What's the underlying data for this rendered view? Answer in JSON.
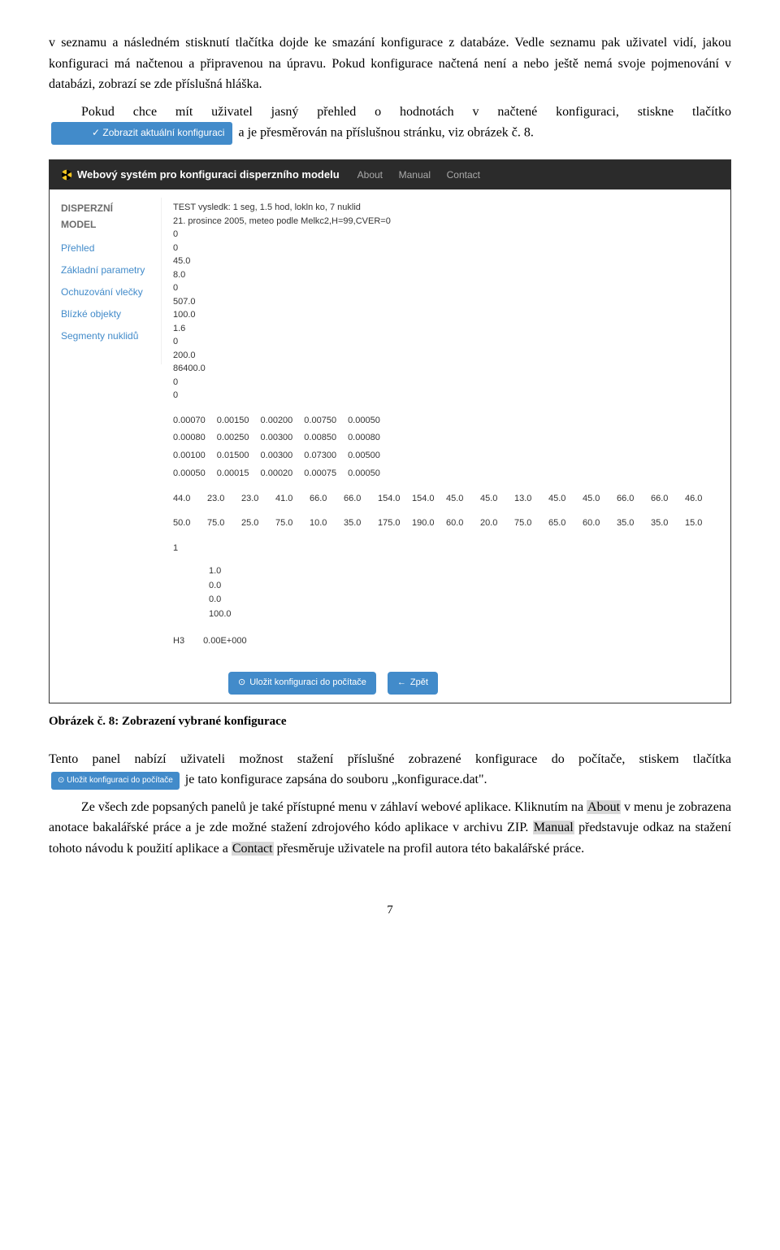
{
  "paragraphs": {
    "p1": "v seznamu a následném stisknutí tlačítka dojde ke smazání konfigurace z databáze. Vedle seznamu pak uživatel vidí, jakou konfiguraci má načtenou a připravenou na úpravu. Pokud konfigurace načtená není a nebo ještě nemá svoje pojmenování v databázi, zobrazí se zde příslušná hláška.",
    "p2a": "Pokud chce mít uživatel jasný přehled o hodnotách v načtené konfiguraci, stiskne tlačítko ",
    "p2b": " a je přesměrován na příslušnou stránku, viz obrázek č. 8.",
    "btn_refresh": "✓ Zobrazit aktuální konfiguraci"
  },
  "screenshot": {
    "brand": "Webový systém pro konfiguraci disperzního modelu",
    "nav": [
      "About",
      "Manual",
      "Contact"
    ],
    "sidebar": {
      "title": "DISPERZNÍ MODEL",
      "items": [
        "Přehled",
        "Základní parametry",
        "Ochuzování vlečky",
        "Blízké objekty",
        "Segmenty nuklidů"
      ]
    },
    "main": {
      "title_lines": [
        "TEST vysledk: 1 seg, 1.5 hod, lokln ko, 7 nuklid",
        "21. prosince 2005, meteo podle Melkc2,H=99,CVER=0"
      ],
      "list1": [
        "0",
        "0",
        "45.0",
        "8.0",
        "0",
        "507.0",
        "100.0",
        "1.6",
        "0",
        "200.0",
        "86400.0",
        "0",
        "0"
      ],
      "table1": [
        [
          "0.00070",
          "0.00150",
          "0.00200",
          "0.00750",
          "0.00050"
        ],
        [
          "0.00080",
          "0.00250",
          "0.00300",
          "0.00850",
          "0.00080"
        ],
        [
          "0.00100",
          "0.01500",
          "0.00300",
          "0.07300",
          "0.00500"
        ],
        [
          "0.00050",
          "0.00015",
          "0.00020",
          "0.00075",
          "0.00050"
        ]
      ],
      "wide_rows": [
        [
          "44.0",
          "23.0",
          "23.0",
          "41.0",
          "66.0",
          "66.0",
          "154.0",
          "154.0",
          "45.0",
          "45.0",
          "13.0",
          "45.0",
          "45.0",
          "66.0",
          "66.0",
          "46.0"
        ],
        [
          "50.0",
          "75.0",
          "25.0",
          "75.0",
          "10.0",
          "35.0",
          "175.0",
          "190.0",
          "60.0",
          "20.0",
          "75.0",
          "65.0",
          "60.0",
          "35.0",
          "35.0",
          "15.0"
        ]
      ],
      "single": "1",
      "col_small": [
        [
          "",
          "1.0"
        ],
        [
          "",
          "0.0"
        ],
        [
          "",
          "0.0"
        ],
        [
          "",
          "100.0"
        ]
      ],
      "h3row": [
        "H3",
        "0.00E+000"
      ]
    },
    "footer": {
      "save": "Uložit konfiguraci do počítače",
      "back": "Zpět"
    }
  },
  "caption": "Obrázek č. 8: Zobrazení vybrané konfigurace",
  "paragraphs2": {
    "p3a": "Tento panel nabízí uživateli možnost stažení příslušné zobrazené konfigurace do počítače, stiskem tlačítka ",
    "p3b": " je tato konfigurace zapsána do souboru „konfigurace.dat\".",
    "btn_save": "⊙ Uložit konfiguraci do počítače",
    "p4a": "Ze všech zde popsaných panelů je také přístupné menu v záhlaví webové aplikace. Kliknutím na ",
    "about": "About",
    "p4b": " v menu je zobrazena anotace bakalářské práce a je zde možné stažení zdrojového kódo aplikace v archivu ZIP. ",
    "manual": "Manual",
    "p4c": " představuje odkaz na stažení tohoto návodu k použití aplikace a ",
    "contact": "Contact",
    "p4d": " přesměruje uživatele na profil autora této bakalářské práce."
  },
  "page_num": "7",
  "colors": {
    "blue": "#428bca",
    "dark": "#2b2b2b",
    "hl": "#d9d9d9"
  }
}
